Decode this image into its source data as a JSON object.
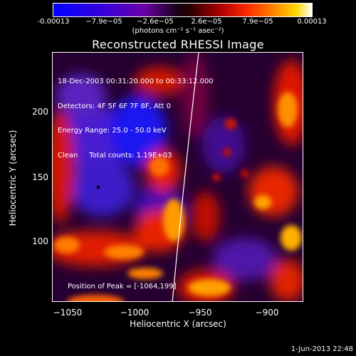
{
  "colorbar": {
    "ticks": [
      "-0.00013",
      "−7.9e−05",
      "−2.6e−05",
      "2.6e−05",
      "7.9e−05",
      "0.00013"
    ],
    "units": "(photons cm⁻² s⁻¹ asec⁻²)"
  },
  "title": "Reconstructed RHESSI Image",
  "info_lines": [
    "18-Dec-2003 00:31:20.000 to 00:33:12.000",
    "Detectors: 4F 5F 6F 7F 8F, Att 0",
    "Energy Range: 25.0 - 50.0 keV",
    "Clean     Total counts: 1.19E+03"
  ],
  "peak_label": "Position of Peak = [-1064,199]",
  "x_axis": {
    "label": "Heliocentric X (arcsec)",
    "ticks": [
      "−1050",
      "−1000",
      "−950",
      "−900"
    ]
  },
  "y_axis": {
    "label": "Heliocentric Y (arcsec)",
    "ticks": [
      "200",
      "150",
      "100"
    ]
  },
  "footer_date": "1-Jun-2013 22:48"
}
